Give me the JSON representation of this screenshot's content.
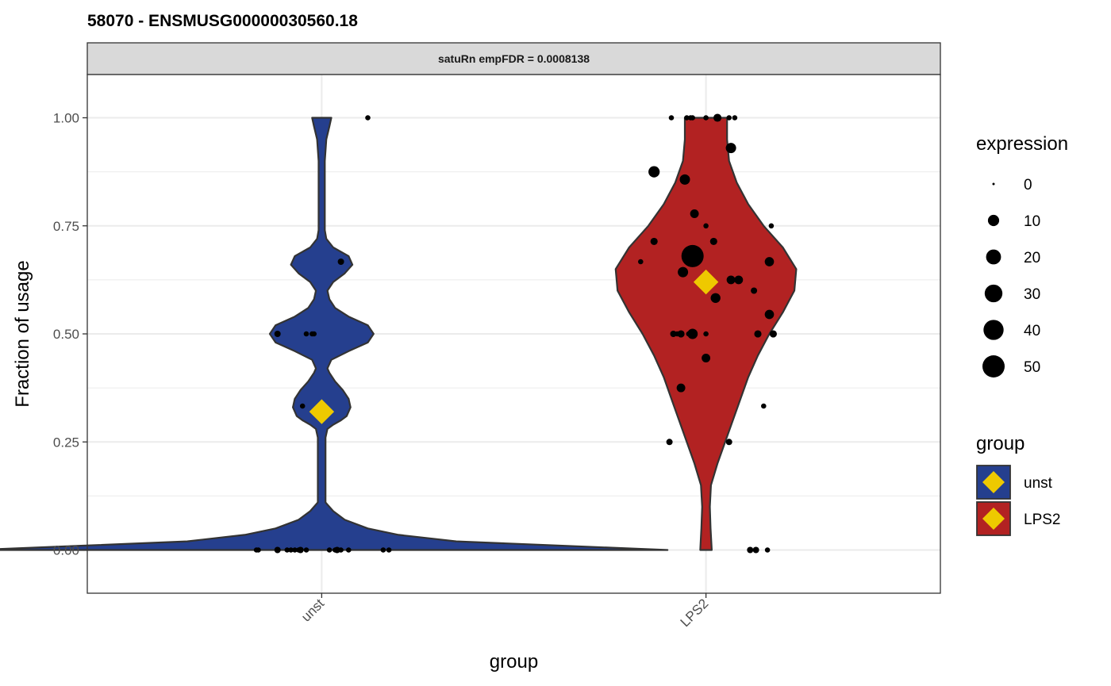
{
  "chart_data": {
    "type": "violin",
    "title": "58070  -  ENSMUSG00000030560.18",
    "facet_label": "satuRn empFDR = 0.0008138",
    "xlabel": "group",
    "ylabel": "Fraction of usage",
    "categories": [
      "unst",
      "LPS2"
    ],
    "ylim": [
      -0.1,
      1.1
    ],
    "y_ticks": [
      0.0,
      0.25,
      0.5,
      0.75,
      1.0
    ],
    "y_tick_labels": [
      "0.00",
      "0.25",
      "0.50",
      "0.75",
      "1.00"
    ],
    "colors": {
      "unst": "#253f8e",
      "LPS2": "#b22222",
      "mean_marker": "#eec900",
      "outline": "#333333"
    },
    "means": {
      "unst": 0.32,
      "LPS2": 0.62
    },
    "violins": [
      {
        "group": "unst",
        "profile": [
          [
            0.0,
            0.9
          ],
          [
            0.01,
            0.62
          ],
          [
            0.02,
            0.35
          ],
          [
            0.035,
            0.2
          ],
          [
            0.05,
            0.12
          ],
          [
            0.07,
            0.06
          ],
          [
            0.09,
            0.03
          ],
          [
            0.11,
            0.01
          ],
          [
            0.14,
            0.01
          ],
          [
            0.18,
            0.01
          ],
          [
            0.22,
            0.01
          ],
          [
            0.26,
            0.01
          ],
          [
            0.28,
            0.015
          ],
          [
            0.29,
            0.03
          ],
          [
            0.3,
            0.05
          ],
          [
            0.31,
            0.065
          ],
          [
            0.33,
            0.075
          ],
          [
            0.35,
            0.07
          ],
          [
            0.37,
            0.055
          ],
          [
            0.39,
            0.035
          ],
          [
            0.41,
            0.02
          ],
          [
            0.42,
            0.015
          ],
          [
            0.44,
            0.025
          ],
          [
            0.46,
            0.07
          ],
          [
            0.48,
            0.12
          ],
          [
            0.5,
            0.135
          ],
          [
            0.52,
            0.12
          ],
          [
            0.54,
            0.07
          ],
          [
            0.56,
            0.035
          ],
          [
            0.58,
            0.02
          ],
          [
            0.6,
            0.015
          ],
          [
            0.62,
            0.03
          ],
          [
            0.64,
            0.06
          ],
          [
            0.66,
            0.08
          ],
          [
            0.68,
            0.07
          ],
          [
            0.7,
            0.03
          ],
          [
            0.72,
            0.012
          ],
          [
            0.74,
            0.008
          ],
          [
            0.8,
            0.008
          ],
          [
            0.9,
            0.008
          ],
          [
            0.95,
            0.012
          ],
          [
            0.98,
            0.02
          ],
          [
            1.0,
            0.025
          ]
        ]
      },
      {
        "group": "LPS2",
        "profile": [
          [
            0.0,
            0.015
          ],
          [
            0.05,
            0.012
          ],
          [
            0.1,
            0.01
          ],
          [
            0.15,
            0.013
          ],
          [
            0.2,
            0.03
          ],
          [
            0.25,
            0.05
          ],
          [
            0.3,
            0.07
          ],
          [
            0.35,
            0.09
          ],
          [
            0.4,
            0.11
          ],
          [
            0.45,
            0.135
          ],
          [
            0.5,
            0.165
          ],
          [
            0.55,
            0.2
          ],
          [
            0.6,
            0.23
          ],
          [
            0.65,
            0.235
          ],
          [
            0.7,
            0.2
          ],
          [
            0.75,
            0.15
          ],
          [
            0.8,
            0.11
          ],
          [
            0.85,
            0.08
          ],
          [
            0.9,
            0.06
          ],
          [
            0.95,
            0.055
          ],
          [
            1.0,
            0.055
          ]
        ]
      }
    ],
    "points": [
      {
        "group": "unst",
        "offset": -0.17,
        "y": 0.0,
        "expression": 1
      },
      {
        "group": "unst",
        "offset": -0.165,
        "y": 0.0,
        "expression": 1
      },
      {
        "group": "unst",
        "offset": -0.115,
        "y": 0.0,
        "expression": 2
      },
      {
        "group": "unst",
        "offset": -0.09,
        "y": 0.0,
        "expression": 1
      },
      {
        "group": "unst",
        "offset": -0.08,
        "y": 0.0,
        "expression": 1
      },
      {
        "group": "unst",
        "offset": -0.07,
        "y": 0.0,
        "expression": 1
      },
      {
        "group": "unst",
        "offset": -0.06,
        "y": 0.0,
        "expression": 1
      },
      {
        "group": "unst",
        "offset": -0.055,
        "y": 0.0,
        "expression": 2
      },
      {
        "group": "unst",
        "offset": -0.04,
        "y": 0.0,
        "expression": 1
      },
      {
        "group": "unst",
        "offset": 0.02,
        "y": 0.0,
        "expression": 1
      },
      {
        "group": "unst",
        "offset": 0.035,
        "y": 0.0,
        "expression": 1
      },
      {
        "group": "unst",
        "offset": 0.04,
        "y": 0.0,
        "expression": 2
      },
      {
        "group": "unst",
        "offset": 0.05,
        "y": 0.0,
        "expression": 1
      },
      {
        "group": "unst",
        "offset": 0.07,
        "y": 0.0,
        "expression": 1
      },
      {
        "group": "unst",
        "offset": 0.16,
        "y": 0.0,
        "expression": 1
      },
      {
        "group": "unst",
        "offset": 0.175,
        "y": 0.0,
        "expression": 1
      },
      {
        "group": "unst",
        "offset": -0.115,
        "y": 0.5,
        "expression": 2
      },
      {
        "group": "unst",
        "offset": -0.04,
        "y": 0.5,
        "expression": 1
      },
      {
        "group": "unst",
        "offset": -0.025,
        "y": 0.5,
        "expression": 1
      },
      {
        "group": "unst",
        "offset": -0.02,
        "y": 0.5,
        "expression": 1
      },
      {
        "group": "unst",
        "offset": 0.05,
        "y": 0.667,
        "expression": 2
      },
      {
        "group": "unst",
        "offset": -0.05,
        "y": 0.333,
        "expression": 1
      },
      {
        "group": "unst",
        "offset": 0.12,
        "y": 1.0,
        "expression": 1
      },
      {
        "group": "LPS2",
        "offset": -0.09,
        "y": 1.0,
        "expression": 1
      },
      {
        "group": "LPS2",
        "offset": -0.05,
        "y": 1.0,
        "expression": 1
      },
      {
        "group": "LPS2",
        "offset": -0.04,
        "y": 1.0,
        "expression": 1
      },
      {
        "group": "LPS2",
        "offset": -0.035,
        "y": 1.0,
        "expression": 1
      },
      {
        "group": "LPS2",
        "offset": 0.0,
        "y": 1.0,
        "expression": 1
      },
      {
        "group": "LPS2",
        "offset": 0.03,
        "y": 1.0,
        "expression": 4
      },
      {
        "group": "LPS2",
        "offset": 0.06,
        "y": 1.0,
        "expression": 1
      },
      {
        "group": "LPS2",
        "offset": 0.075,
        "y": 1.0,
        "expression": 1
      },
      {
        "group": "LPS2",
        "offset": 0.065,
        "y": 0.93,
        "expression": 8
      },
      {
        "group": "LPS2",
        "offset": -0.135,
        "y": 0.875,
        "expression": 10
      },
      {
        "group": "LPS2",
        "offset": -0.055,
        "y": 0.857,
        "expression": 8
      },
      {
        "group": "LPS2",
        "offset": -0.03,
        "y": 0.778,
        "expression": 5
      },
      {
        "group": "LPS2",
        "offset": 0.0,
        "y": 0.75,
        "expression": 1
      },
      {
        "group": "LPS2",
        "offset": 0.17,
        "y": 0.75,
        "expression": 1
      },
      {
        "group": "LPS2",
        "offset": -0.135,
        "y": 0.714,
        "expression": 3
      },
      {
        "group": "LPS2",
        "offset": 0.02,
        "y": 0.714,
        "expression": 3
      },
      {
        "group": "LPS2",
        "offset": -0.035,
        "y": 0.68,
        "expression": 50
      },
      {
        "group": "LPS2",
        "offset": -0.17,
        "y": 0.667,
        "expression": 1
      },
      {
        "group": "LPS2",
        "offset": 0.165,
        "y": 0.667,
        "expression": 6
      },
      {
        "group": "LPS2",
        "offset": -0.06,
        "y": 0.643,
        "expression": 8
      },
      {
        "group": "LPS2",
        "offset": 0.065,
        "y": 0.625,
        "expression": 5
      },
      {
        "group": "LPS2",
        "offset": 0.085,
        "y": 0.625,
        "expression": 5
      },
      {
        "group": "LPS2",
        "offset": 0.125,
        "y": 0.6,
        "expression": 2
      },
      {
        "group": "LPS2",
        "offset": 0.025,
        "y": 0.583,
        "expression": 7
      },
      {
        "group": "LPS2",
        "offset": 0.165,
        "y": 0.545,
        "expression": 6
      },
      {
        "group": "LPS2",
        "offset": -0.085,
        "y": 0.5,
        "expression": 2
      },
      {
        "group": "LPS2",
        "offset": -0.075,
        "y": 0.5,
        "expression": 1
      },
      {
        "group": "LPS2",
        "offset": -0.065,
        "y": 0.5,
        "expression": 3
      },
      {
        "group": "LPS2",
        "offset": -0.045,
        "y": 0.5,
        "expression": 1
      },
      {
        "group": "LPS2",
        "offset": -0.035,
        "y": 0.5,
        "expression": 8
      },
      {
        "group": "LPS2",
        "offset": 0.0,
        "y": 0.5,
        "expression": 1
      },
      {
        "group": "LPS2",
        "offset": 0.135,
        "y": 0.5,
        "expression": 3
      },
      {
        "group": "LPS2",
        "offset": 0.175,
        "y": 0.5,
        "expression": 3
      },
      {
        "group": "LPS2",
        "offset": 0.0,
        "y": 0.444,
        "expression": 5
      },
      {
        "group": "LPS2",
        "offset": -0.065,
        "y": 0.375,
        "expression": 5
      },
      {
        "group": "LPS2",
        "offset": 0.15,
        "y": 0.333,
        "expression": 1
      },
      {
        "group": "LPS2",
        "offset": -0.095,
        "y": 0.25,
        "expression": 2
      },
      {
        "group": "LPS2",
        "offset": 0.06,
        "y": 0.25,
        "expression": 2
      },
      {
        "group": "LPS2",
        "offset": 0.115,
        "y": 0.0,
        "expression": 2
      },
      {
        "group": "LPS2",
        "offset": 0.13,
        "y": 0.0,
        "expression": 2
      },
      {
        "group": "LPS2",
        "offset": 0.16,
        "y": 0.0,
        "expression": 1
      }
    ],
    "legend": {
      "placement": "right",
      "size": {
        "title": "expression",
        "values": [
          0,
          10,
          20,
          30,
          40,
          50
        ],
        "labels": [
          "0",
          "10",
          "20",
          "30",
          "40",
          "50"
        ]
      },
      "fill": {
        "title": "group",
        "entries": [
          {
            "label": "unst",
            "color": "#253f8e"
          },
          {
            "label": "LPS2",
            "color": "#b22222"
          }
        ]
      }
    },
    "grid": true
  }
}
